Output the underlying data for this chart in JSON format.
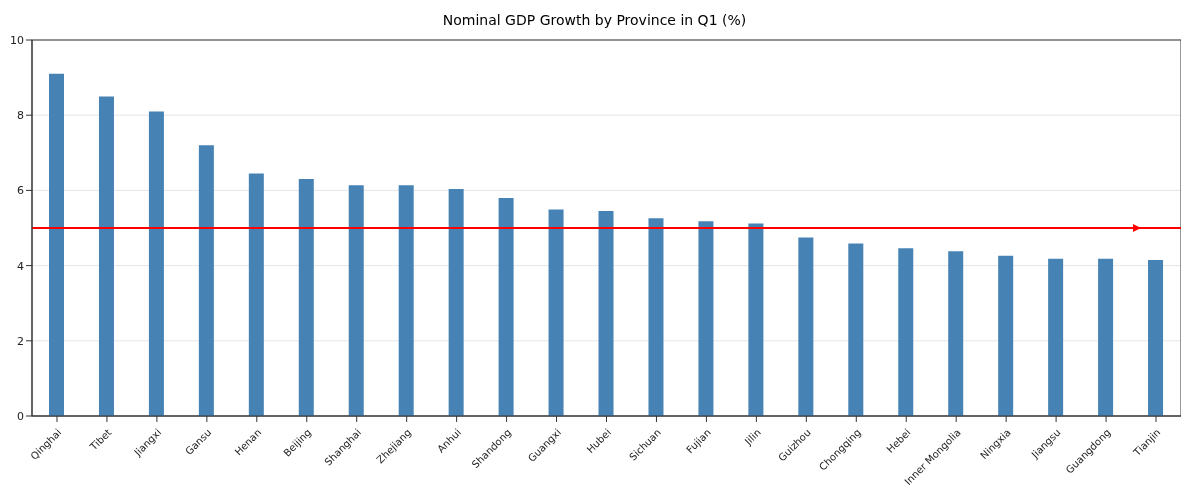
{
  "chart_data": {
    "type": "bar",
    "title": "Nominal GDP Growth by Province in Q1 (%)",
    "categories": [
      "Qinghai",
      "Tibet",
      "Jiangxi",
      "Gansu",
      "Henan",
      "Beijing",
      "Shanghai",
      "Zhejiang",
      "Anhui",
      "Shandong",
      "Guangxi",
      "Hubei",
      "Sichuan",
      "Fujian",
      "Jilin",
      "Guizhou",
      "Chongqing",
      "Hebei",
      "Inner Mongolia",
      "Ningxia",
      "Jiangsu",
      "Guangdong",
      "Tianjin"
    ],
    "values": [
      9.1,
      8.5,
      8.1,
      7.2,
      6.45,
      6.3,
      6.14,
      6.14,
      6.04,
      5.8,
      5.49,
      5.45,
      5.26,
      5.18,
      5.12,
      4.75,
      4.59,
      4.46,
      4.38,
      4.26,
      4.18,
      4.18,
      4.15
    ],
    "color": "#4682b4",
    "ylim": [
      0,
      10
    ],
    "yticks": [
      0,
      2,
      4,
      6,
      8,
      10
    ],
    "grid": "y",
    "ref_lines": [
      {
        "axis": "y",
        "value": 5,
        "color": "#ff0000"
      }
    ]
  }
}
